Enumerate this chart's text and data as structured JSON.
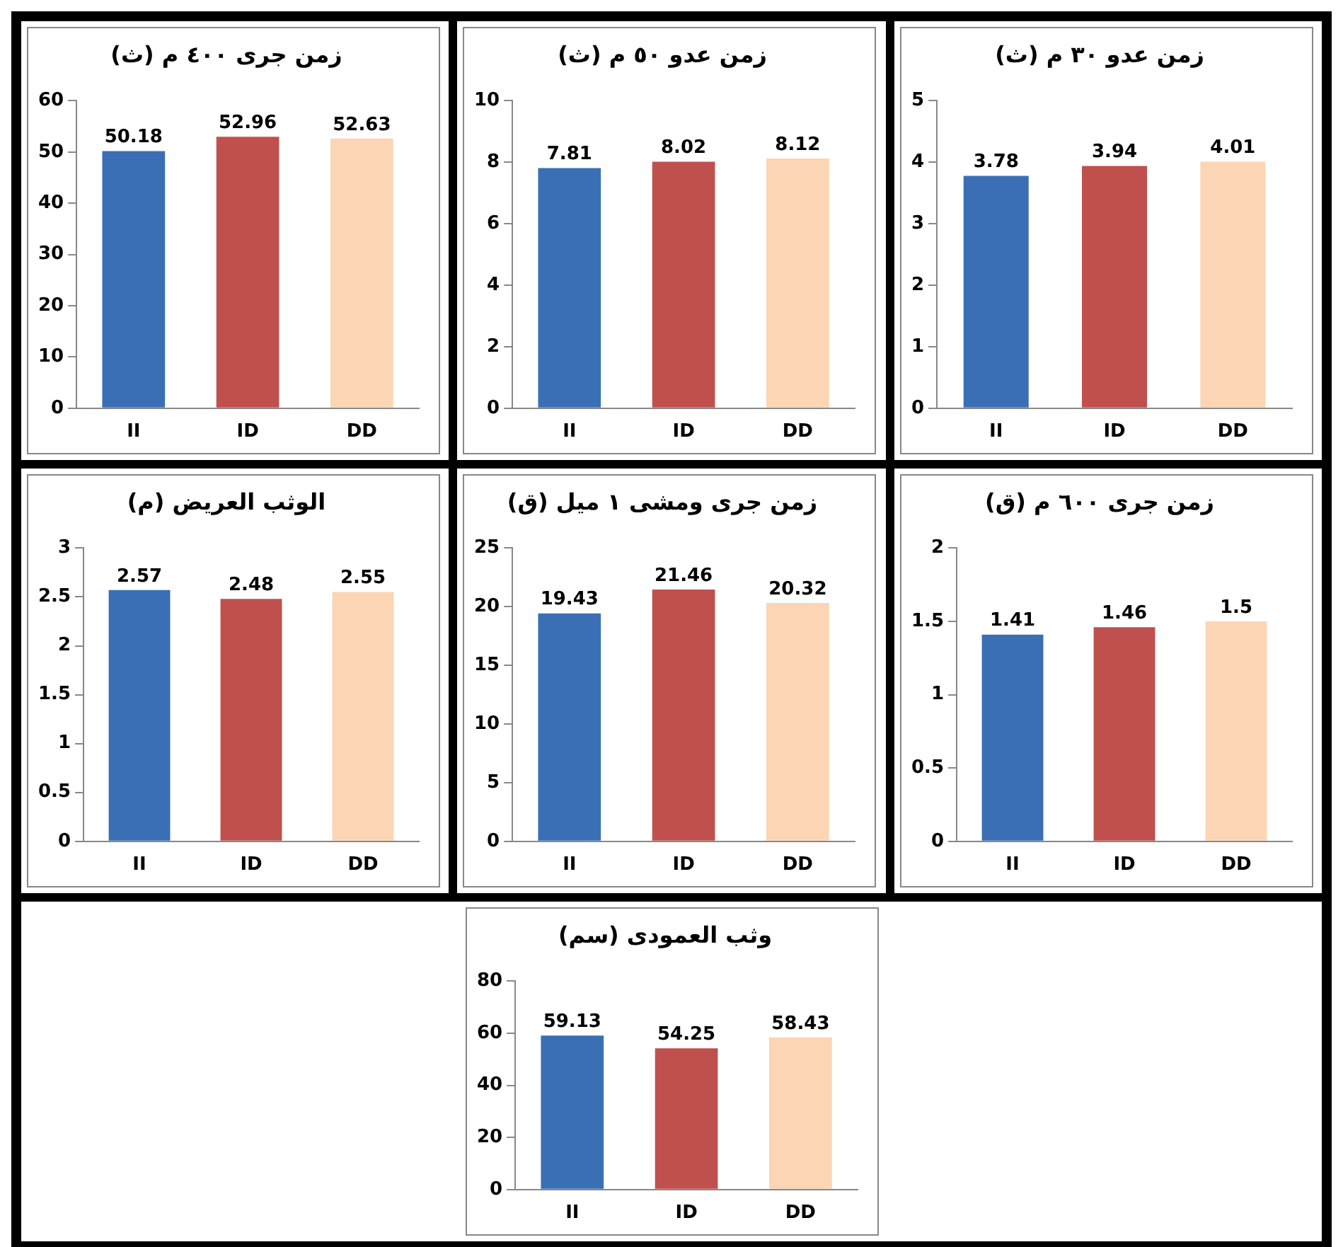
{
  "chart_data": [
    {
      "type": "bar",
      "title": "زمن جرى ٤٠٠ م (ث)",
      "categories": [
        "II",
        "ID",
        "DD"
      ],
      "values": [
        50.18,
        52.96,
        52.63
      ],
      "colors": [
        "#3a6fb5",
        "#c0504d",
        "#fcd5b4"
      ],
      "ylim": [
        0,
        60
      ],
      "yticks": [
        0,
        10,
        20,
        30,
        40,
        50,
        60
      ],
      "data_labels": true,
      "grid": false,
      "legend": false
    },
    {
      "type": "bar",
      "title": "زمن عدو ٥٠ م (ث)",
      "categories": [
        "II",
        "ID",
        "DD"
      ],
      "values": [
        7.81,
        8.02,
        8.12
      ],
      "colors": [
        "#3a6fb5",
        "#c0504d",
        "#fcd5b4"
      ],
      "ylim": [
        0,
        10
      ],
      "yticks": [
        0,
        2,
        4,
        6,
        8,
        10
      ],
      "data_labels": true,
      "grid": false,
      "legend": false
    },
    {
      "type": "bar",
      "title": "زمن عدو ٣٠ م (ث)",
      "categories": [
        "II",
        "ID",
        "DD"
      ],
      "values": [
        3.78,
        3.94,
        4.01
      ],
      "colors": [
        "#3a6fb5",
        "#c0504d",
        "#fcd5b4"
      ],
      "ylim": [
        0,
        5
      ],
      "yticks": [
        0,
        1,
        2,
        3,
        4,
        5
      ],
      "data_labels": true,
      "grid": false,
      "legend": false
    },
    {
      "type": "bar",
      "title": "الوثب العريض (م)",
      "categories": [
        "II",
        "ID",
        "DD"
      ],
      "values": [
        2.57,
        2.48,
        2.55
      ],
      "colors": [
        "#3a6fb5",
        "#c0504d",
        "#fcd5b4"
      ],
      "ylim": [
        0,
        3
      ],
      "yticks": [
        0,
        0.5,
        1,
        1.5,
        2,
        2.5,
        3
      ],
      "data_labels": true,
      "grid": false,
      "legend": false
    },
    {
      "type": "bar",
      "title": "زمن جرى ومشى ١ ميل (ق)",
      "categories": [
        "II",
        "ID",
        "DD"
      ],
      "values": [
        19.43,
        21.46,
        20.32
      ],
      "colors": [
        "#3a6fb5",
        "#c0504d",
        "#fcd5b4"
      ],
      "ylim": [
        0,
        25
      ],
      "yticks": [
        0,
        5,
        10,
        15,
        20,
        25
      ],
      "data_labels": true,
      "grid": false,
      "legend": false
    },
    {
      "type": "bar",
      "title": "زمن جرى ٦٠٠ م (ق)",
      "categories": [
        "II",
        "ID",
        "DD"
      ],
      "values": [
        1.41,
        1.46,
        1.5
      ],
      "colors": [
        "#3a6fb5",
        "#c0504d",
        "#fcd5b4"
      ],
      "ylim": [
        0,
        2
      ],
      "yticks": [
        0,
        0.5,
        1,
        1.5,
        2
      ],
      "data_labels": true,
      "grid": false,
      "legend": false
    },
    {
      "type": "bar",
      "title": "وثب العمودى (سم)",
      "categories": [
        "II",
        "ID",
        "DD"
      ],
      "values": [
        59.13,
        54.25,
        58.43
      ],
      "colors": [
        "#3a6fb5",
        "#c0504d",
        "#fcd5b4"
      ],
      "ylim": [
        0,
        80
      ],
      "yticks": [
        0,
        20,
        40,
        60,
        80
      ],
      "data_labels": true,
      "grid": false,
      "legend": false
    }
  ]
}
